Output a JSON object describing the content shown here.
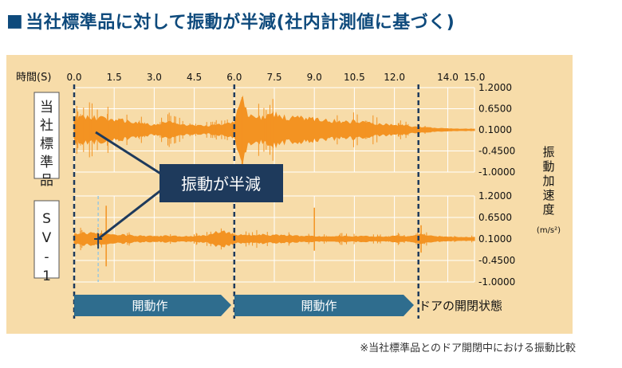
{
  "heading": {
    "marker": "■",
    "title": "当社標準品に対して振動が半減(社内計測値に基づく)"
  },
  "footnote": "※当社標準品とのドア開閉中における振動比較",
  "callout": "振動が半減",
  "phases": {
    "phase1": "開動作",
    "phase2": "開動作",
    "end_label": "ドアの開閉状態"
  },
  "colors": {
    "panel_bg": "#f7dca9",
    "signal": "#f39322",
    "callout_bg": "#1e3a5c",
    "arrow": "#2f6d8e",
    "marker": "#1f3f63"
  },
  "chart_data": {
    "type": "line",
    "x_label": "時間(S)",
    "x_ticks": [
      "0.0",
      "1.5",
      "3.0",
      "4.5",
      "6.0",
      "7.5",
      "9.0",
      "10.5",
      "12.0",
      "14.0",
      "15.0"
    ],
    "x_range": [
      0,
      15
    ],
    "y_label": "振動加速度",
    "y_unit": "(m/s²)",
    "y_ticks": [
      "1.2000",
      "0.6500",
      "0.1000",
      "-0.4500",
      "-1.0000"
    ],
    "y_range": [
      -1.0,
      1.2
    ],
    "phase_markers_s": [
      0.0,
      6.0,
      12.9
    ],
    "series": [
      {
        "name": "当社標準品",
        "x": [
          0.0,
          0.5,
          1.0,
          1.5,
          2.0,
          2.5,
          3.0,
          3.5,
          4.0,
          4.5,
          5.0,
          5.5,
          6.0,
          6.3,
          6.5,
          7.0,
          7.5,
          8.0,
          8.5,
          9.0,
          9.5,
          10.0,
          10.5,
          11.0,
          11.5,
          12.0,
          12.5,
          13.0,
          13.5,
          14.0,
          14.5,
          15.0
        ],
        "amplitude": [
          0.28,
          0.32,
          0.28,
          0.25,
          0.22,
          0.15,
          0.12,
          0.2,
          0.14,
          0.1,
          0.09,
          0.13,
          0.2,
          0.8,
          0.35,
          0.3,
          0.38,
          0.28,
          0.3,
          0.26,
          0.24,
          0.2,
          0.22,
          0.18,
          0.14,
          0.12,
          0.1,
          0.06,
          0.04,
          0.03,
          0.02,
          0.02
        ]
      },
      {
        "name": "SV-1",
        "x": [
          0.0,
          0.5,
          1.0,
          1.5,
          2.0,
          2.5,
          3.0,
          3.5,
          4.0,
          4.5,
          5.0,
          5.5,
          6.0,
          6.5,
          7.0,
          7.5,
          8.0,
          8.5,
          9.0,
          9.5,
          10.0,
          10.5,
          11.0,
          11.5,
          12.0,
          12.5,
          13.0,
          13.5,
          14.0,
          14.5,
          15.0
        ],
        "amplitude": [
          0.12,
          0.14,
          0.12,
          0.1,
          0.09,
          0.07,
          0.06,
          0.07,
          0.06,
          0.06,
          0.08,
          0.2,
          0.1,
          0.09,
          0.1,
          0.09,
          0.08,
          0.07,
          0.06,
          0.06,
          0.07,
          0.06,
          0.06,
          0.05,
          0.07,
          0.06,
          0.1,
          0.06,
          0.05,
          0.04,
          0.04
        ]
      }
    ]
  }
}
